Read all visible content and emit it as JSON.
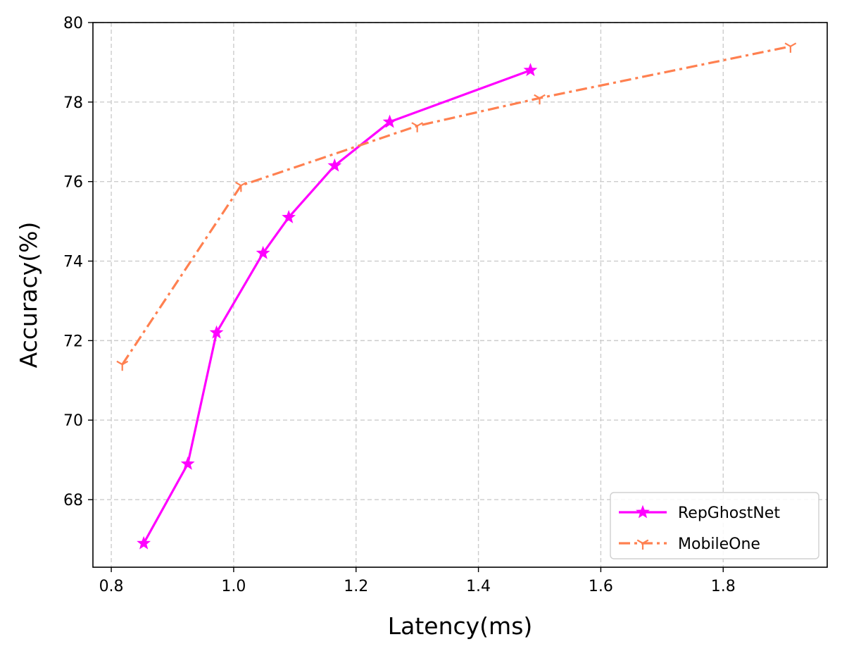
{
  "chart_data": {
    "type": "line",
    "title": "",
    "xlabel": "Latency(ms)",
    "ylabel": "Accuracy(%)",
    "xlim": [
      0.77,
      1.97
    ],
    "ylim": [
      66.3,
      80.0
    ],
    "xticks": [
      0.8,
      1.0,
      1.2,
      1.4,
      1.6,
      1.8
    ],
    "xtick_labels": [
      "0.8",
      "1.0",
      "1.2",
      "1.4",
      "1.6",
      "1.8"
    ],
    "yticks": [
      68,
      70,
      72,
      74,
      76,
      78,
      80
    ],
    "ytick_labels": [
      "68",
      "70",
      "72",
      "74",
      "76",
      "78",
      "80"
    ],
    "grid": true,
    "legend": "lower-right",
    "series": [
      {
        "name": "RepGhostNet",
        "color": "#ff00ff",
        "line_style": "solid",
        "marker": "star",
        "x": [
          0.853,
          0.925,
          0.972,
          1.048,
          1.09,
          1.165,
          1.255,
          1.485
        ],
        "y": [
          66.9,
          68.9,
          72.2,
          74.2,
          75.1,
          76.4,
          77.5,
          78.8
        ]
      },
      {
        "name": "MobileOne",
        "color": "#ff8050",
        "line_style": "dashdot",
        "marker": "tri-down",
        "x": [
          0.818,
          1.012,
          1.3,
          1.5,
          1.91
        ],
        "y": [
          71.4,
          75.9,
          77.4,
          78.1,
          79.4
        ]
      }
    ]
  }
}
